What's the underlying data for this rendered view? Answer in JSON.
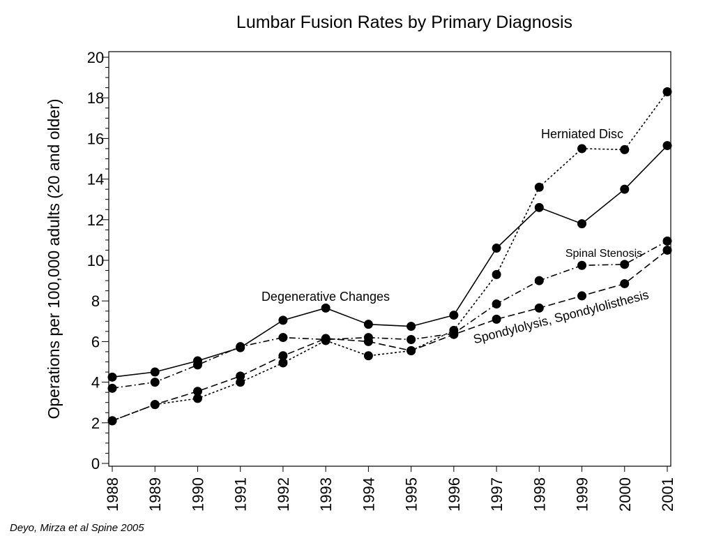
{
  "chart_data": {
    "type": "line",
    "title": "Lumbar Fusion Rates by Primary Diagnosis",
    "xlabel": "",
    "ylabel": "Operations per 100,000 adults (20 and older)",
    "x": [
      1988,
      1989,
      1990,
      1991,
      1992,
      1993,
      1994,
      1995,
      1996,
      1997,
      1998,
      1999,
      2000,
      2001
    ],
    "xtick_labels": [
      "1988",
      "1989",
      "1990",
      "1991",
      "1992",
      "1993",
      "1994",
      "1995",
      "1996",
      "1997",
      "1998",
      "1999",
      "2000",
      "2001"
    ],
    "ylim": [
      0,
      20
    ],
    "yticks": [
      0,
      2,
      4,
      6,
      8,
      10,
      12,
      14,
      16,
      18,
      20
    ],
    "ytick_labels": [
      "0",
      "2",
      "4",
      "6",
      "8",
      "10",
      "12",
      "14",
      "16",
      "18",
      "20"
    ],
    "grid": false,
    "series": [
      {
        "name": "Degenerative Changes",
        "line_style": "solid",
        "values": [
          4.25,
          4.5,
          5.05,
          5.7,
          7.05,
          7.65,
          6.85,
          6.75,
          7.3,
          10.6,
          12.6,
          11.8,
          13.5,
          15.65
        ]
      },
      {
        "name": "Herniated Disc",
        "line_style": "dotted",
        "values": [
          2.1,
          2.9,
          3.2,
          4.0,
          4.95,
          6.05,
          5.3,
          5.55,
          6.55,
          9.3,
          13.6,
          15.5,
          15.45,
          18.3
        ]
      },
      {
        "name": "Spinal Stenosis",
        "line_style": "dash-dot",
        "values": [
          3.7,
          4.0,
          4.85,
          5.75,
          6.2,
          6.1,
          6.2,
          6.1,
          6.4,
          7.85,
          9.0,
          9.75,
          9.8,
          10.95
        ]
      },
      {
        "name": "Spondylolysis, Spondylolisthesis",
        "line_style": "dashed",
        "values": [
          2.1,
          2.9,
          3.55,
          4.3,
          5.3,
          6.15,
          6.0,
          5.55,
          6.35,
          7.1,
          7.65,
          8.25,
          8.85,
          10.5
        ]
      }
    ]
  },
  "citation": "Deyo, Mirza et al  Spine 2005"
}
